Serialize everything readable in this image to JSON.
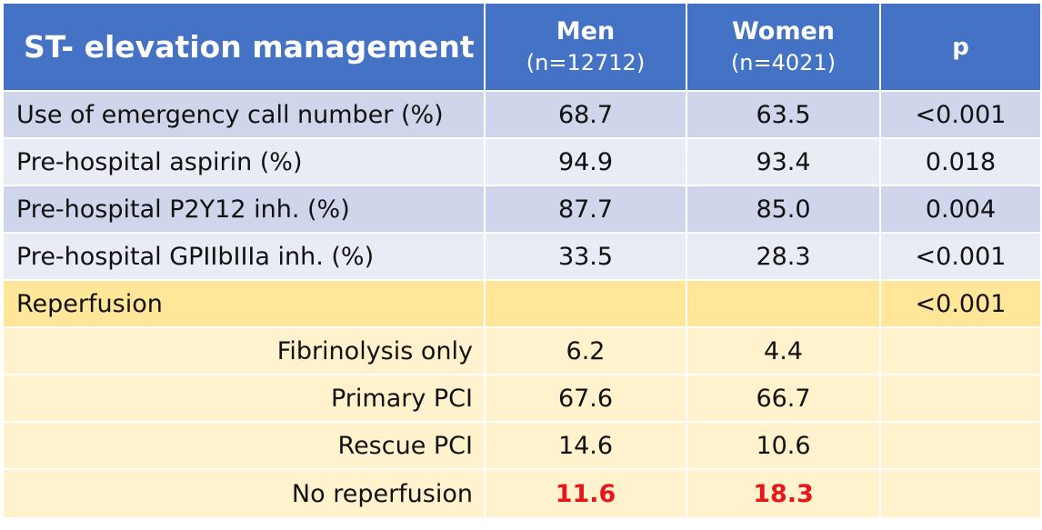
{
  "header": {
    "title": "ST- elevation management",
    "men_label": "Men",
    "men_n": "(n=12712)",
    "women_label": "Women",
    "women_n": "(n=4021)",
    "p_label": "p"
  },
  "rows": [
    {
      "label": "Use of emergency call number (%)",
      "men": "68.7",
      "women": "63.5",
      "p": "<0.001"
    },
    {
      "label": "Pre-hospital aspirin (%)",
      "men": "94.9",
      "women": "93.4",
      "p": "0.018"
    },
    {
      "label": "Pre-hospital P2Y12 inh. (%)",
      "men": "87.7",
      "women": "85.0",
      "p": "0.004"
    },
    {
      "label": "Pre-hospital GPIIbIIIa inh. (%)",
      "men": "33.5",
      "women": "28.3",
      "p": "<0.001"
    }
  ],
  "reperfusion": {
    "label": "Reperfusion",
    "p": "<0.001",
    "subrows": [
      {
        "label": "Fibrinolysis only",
        "men": "6.2",
        "women": "4.4"
      },
      {
        "label": "Primary PCI",
        "men": "67.6",
        "women": "66.7"
      },
      {
        "label": "Rescue PCI",
        "men": "14.6",
        "women": "10.6"
      },
      {
        "label": "No reperfusion",
        "men": "11.6",
        "women": "18.3"
      }
    ]
  },
  "colors": {
    "header_bg": "#4472c4",
    "row_dark": "#cfd5ea",
    "row_light": "#e9ebf5",
    "gold": "#ffe699",
    "gold_light": "#fff2cc",
    "highlight_red": "#e8151b"
  }
}
